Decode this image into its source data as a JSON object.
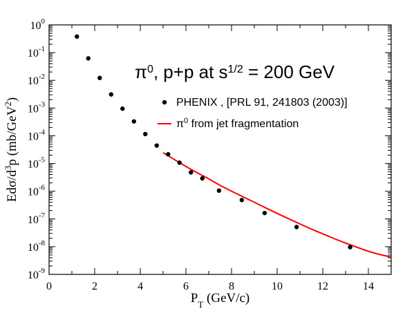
{
  "chart_data": {
    "type": "scatter",
    "title": {
      "parts": [
        {
          "text": "π",
          "style": "normal"
        },
        {
          "text": "0",
          "style": "sup"
        },
        {
          "text": ", p+p at s",
          "style": "normal"
        },
        {
          "text": "1/2",
          "style": "sup"
        },
        {
          "text": " = 200 GeV",
          "style": "normal"
        }
      ]
    },
    "xlabel": {
      "parts": [
        {
          "text": "P",
          "style": "normal"
        },
        {
          "text": "T",
          "style": "sub"
        },
        {
          "text": " (GeV/c)",
          "style": "normal"
        }
      ]
    },
    "ylabel": {
      "parts": [
        {
          "text": "Edσ/d",
          "style": "normal"
        },
        {
          "text": "3",
          "style": "sup"
        },
        {
          "text": "p (mb/GeV",
          "style": "normal"
        },
        {
          "text": "2",
          "style": "sup"
        },
        {
          "text": ")",
          "style": "normal"
        }
      ]
    },
    "x_axis": {
      "min": 0,
      "max": 15,
      "major_ticks": [
        0,
        2,
        4,
        6,
        8,
        10,
        12,
        14
      ],
      "tick_labels": [
        "0",
        "2",
        "4",
        "6",
        "8",
        "10",
        "12",
        "14"
      ],
      "minor_step": 1
    },
    "y_axis": {
      "scale": "log",
      "min_exp": -9,
      "max_exp": 0,
      "tick_labels": [
        {
          "base": "10",
          "exp": "0"
        },
        {
          "base": "10",
          "exp": "-1"
        },
        {
          "base": "10",
          "exp": "-2"
        },
        {
          "base": "10",
          "exp": "-3"
        },
        {
          "base": "10",
          "exp": "-4"
        },
        {
          "base": "10",
          "exp": "-5"
        },
        {
          "base": "10",
          "exp": "-6"
        },
        {
          "base": "10",
          "exp": "-7"
        },
        {
          "base": "10",
          "exp": "-8"
        },
        {
          "base": "10",
          "exp": "-9"
        }
      ]
    },
    "grid": false,
    "legend": {
      "placement": "top-right",
      "entries": [
        {
          "marker": "dot",
          "parts": [
            {
              "text": "PHENIX , [PRL 91, 241803 (2003)]",
              "style": "normal"
            }
          ]
        },
        {
          "marker": "line",
          "parts": [
            {
              "text": "π",
              "style": "normal"
            },
            {
              "text": "0",
              "style": "sup"
            },
            {
              "text": " from jet fragmentation",
              "style": "normal"
            }
          ]
        }
      ]
    },
    "series": [
      {
        "type": "scatter",
        "color": "#000000",
        "points": [
          {
            "x": 1.22,
            "y": 0.38
          },
          {
            "x": 1.72,
            "y": 0.062
          },
          {
            "x": 2.22,
            "y": 0.0122
          },
          {
            "x": 2.72,
            "y": 0.0031
          },
          {
            "x": 3.22,
            "y": 0.00095
          },
          {
            "x": 3.72,
            "y": 0.00033
          },
          {
            "x": 4.22,
            "y": 0.000115
          },
          {
            "x": 4.72,
            "y": 4.45e-05
          },
          {
            "x": 5.22,
            "y": 2.15e-05
          },
          {
            "x": 5.72,
            "y": 1.07e-05
          },
          {
            "x": 6.22,
            "y": 4.8e-06
          },
          {
            "x": 6.72,
            "y": 2.9e-06
          },
          {
            "x": 7.45,
            "y": 1.05e-06
          },
          {
            "x": 8.45,
            "y": 4.8e-07
          },
          {
            "x": 9.45,
            "y": 1.63e-07
          },
          {
            "x": 10.85,
            "y": 5.1e-08
          },
          {
            "x": 13.2,
            "y": 9.6e-09
          }
        ]
      },
      {
        "type": "line",
        "color": "#ff0000",
        "points": [
          {
            "x": 5.0,
            "y": 2.45e-05
          },
          {
            "x": 5.5,
            "y": 1.38e-05
          },
          {
            "x": 6.0,
            "y": 7.8e-06
          },
          {
            "x": 6.5,
            "y": 4.6e-06
          },
          {
            "x": 7.0,
            "y": 2.8e-06
          },
          {
            "x": 7.5,
            "y": 1.62e-06
          },
          {
            "x": 8.0,
            "y": 1e-06
          },
          {
            "x": 8.5,
            "y": 6.3e-07
          },
          {
            "x": 9.0,
            "y": 4e-07
          },
          {
            "x": 9.5,
            "y": 2.5e-07
          },
          {
            "x": 10.0,
            "y": 1.58e-07
          },
          {
            "x": 10.5,
            "y": 1.02e-07
          },
          {
            "x": 11.0,
            "y": 6.6e-08
          },
          {
            "x": 11.5,
            "y": 4.3e-08
          },
          {
            "x": 12.0,
            "y": 2.9e-08
          },
          {
            "x": 12.5,
            "y": 1.95e-08
          },
          {
            "x": 13.0,
            "y": 1.35e-08
          },
          {
            "x": 13.5,
            "y": 9.5e-09
          },
          {
            "x": 14.0,
            "y": 6.8e-09
          },
          {
            "x": 14.5,
            "y": 5.2e-09
          },
          {
            "x": 15.0,
            "y": 4.2e-09
          }
        ]
      }
    ]
  }
}
